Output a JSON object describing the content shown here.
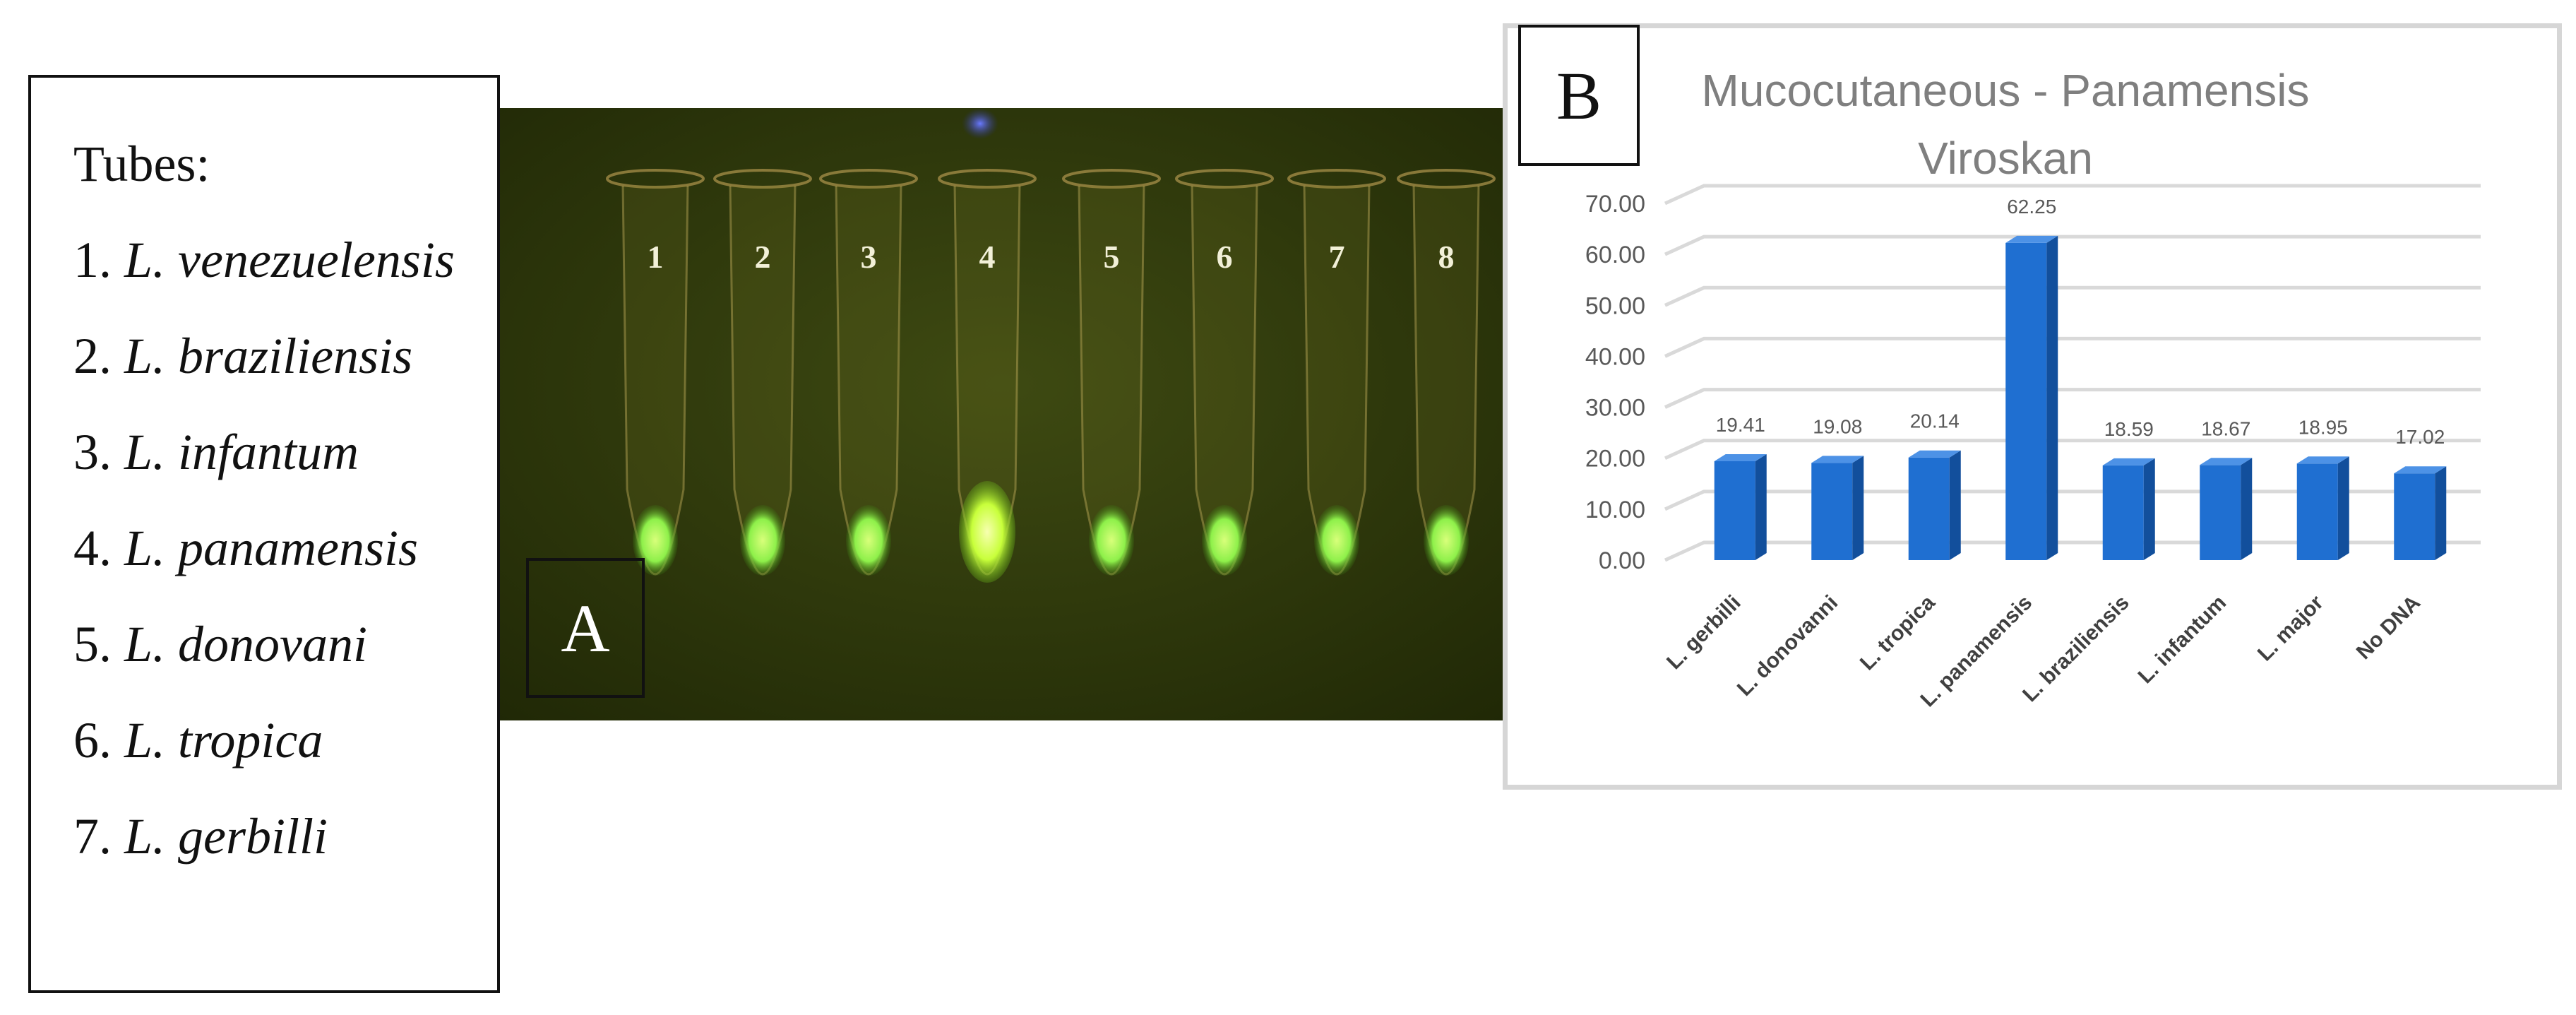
{
  "legend": {
    "heading": "Tubes:",
    "items": [
      {
        "num": "1.",
        "name": "L. venezuelensis"
      },
      {
        "num": "2.",
        "name": "L. braziliensis"
      },
      {
        "num": "3.",
        "name": "L. infantum"
      },
      {
        "num": "4.",
        "name": "L. panamensis"
      },
      {
        "num": "5.",
        "name": "L. donovani"
      },
      {
        "num": "6.",
        "name": "L. tropica"
      },
      {
        "num": "7.",
        "name": "L. gerbilli"
      }
    ]
  },
  "photo": {
    "panel_label": "A",
    "tube_numbers": [
      "1",
      "2",
      "3",
      "4",
      "5",
      "6",
      "7",
      "8"
    ]
  },
  "chart": {
    "panel_label": "B",
    "title_line1": "Mucocutaneous - Panamensis",
    "title_line2": "Viroskan"
  },
  "colors": {
    "bar_front": "#1f6fd1",
    "bar_side": "#124f9c",
    "bar_top": "#4d92e6",
    "grid": "#d9d9d9",
    "photo_bg": "#2f3a0c",
    "glow": "#8ef04a"
  },
  "chart_data": {
    "type": "bar",
    "title": "Mucocutaneous - Panamensis Viroskan",
    "categories": [
      "L. gerbilli",
      "L. donovanni",
      "L. tropica",
      "L. panamensis",
      "L. braziliensis",
      "L. infantum",
      "L. major",
      "No DNA"
    ],
    "values": [
      19.41,
      19.08,
      20.14,
      62.25,
      18.59,
      18.67,
      18.95,
      17.02
    ],
    "value_labels": [
      "19.41",
      "19.08",
      "20.14",
      "62.25",
      "18.59",
      "18.67",
      "18.95",
      "17.02"
    ],
    "yticks": [
      "0.00",
      "10.00",
      "20.00",
      "30.00",
      "40.00",
      "50.00",
      "60.00",
      "70.00"
    ],
    "ylim": [
      0,
      70
    ],
    "grid": true,
    "style": "3d-column"
  }
}
